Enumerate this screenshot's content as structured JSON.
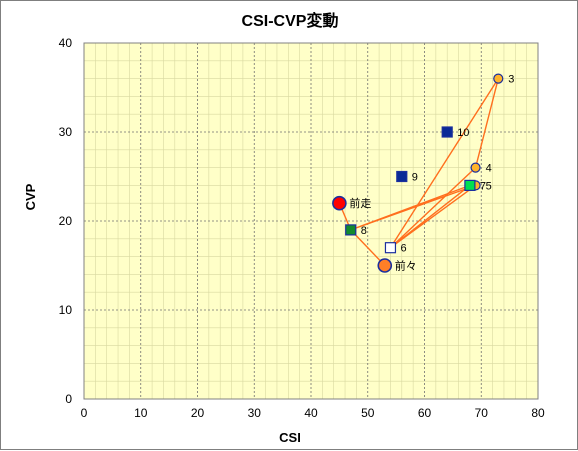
{
  "chart_data": {
    "type": "scatter",
    "title": "CSI-CVP変動",
    "xlabel": "CSI",
    "ylabel": "CVP",
    "xlim": [
      0,
      80
    ],
    "ylim": [
      0,
      40
    ],
    "xticks": [
      0,
      10,
      20,
      30,
      40,
      50,
      60,
      70,
      80
    ],
    "yticks": [
      0,
      10,
      20,
      30,
      40
    ],
    "grid": true,
    "plot_background": "#ffffc8",
    "line_color": "#ff6f1e",
    "points": [
      {
        "label": "前走",
        "x": 45,
        "y": 22,
        "marker": "circle-large",
        "fill": "#ff0000",
        "stroke": "#1b2f9e"
      },
      {
        "label": "前々",
        "x": 53,
        "y": 15,
        "marker": "circle-large",
        "fill": "#ff7f27",
        "stroke": "#1b2f9e"
      },
      {
        "label": "3",
        "x": 73,
        "y": 36,
        "marker": "circle",
        "fill": "#ffb42a",
        "stroke": "#1b2f9e"
      },
      {
        "label": "4",
        "x": 69,
        "y": 26,
        "marker": "circle",
        "fill": "#ffb42a",
        "stroke": "#1b2f9e"
      },
      {
        "label": "5",
        "x": 69,
        "y": 24,
        "marker": "circle",
        "fill": "#ffb42a",
        "stroke": "#1b2f9e"
      },
      {
        "label": "6",
        "x": 54,
        "y": 17,
        "marker": "square",
        "fill": "#ffffff",
        "stroke": "#1b2f9e"
      },
      {
        "label": "7",
        "x": 68,
        "y": 24,
        "marker": "square",
        "fill": "#00e050",
        "stroke": "#1b2f9e"
      },
      {
        "label": "8",
        "x": 47,
        "y": 19,
        "marker": "square",
        "fill": "#138a2c",
        "stroke": "#1b2f9e"
      },
      {
        "label": "9",
        "x": 56,
        "y": 25,
        "marker": "square",
        "fill": "#0a2a96",
        "stroke": "#1b2f9e"
      },
      {
        "label": "10",
        "x": 64,
        "y": 30,
        "marker": "square",
        "fill": "#0a2a96",
        "stroke": "#1b2f9e"
      }
    ],
    "path_order": [
      "前々",
      "8",
      "5",
      "6",
      "3",
      "4",
      "6",
      "7",
      "8",
      "前走"
    ]
  }
}
